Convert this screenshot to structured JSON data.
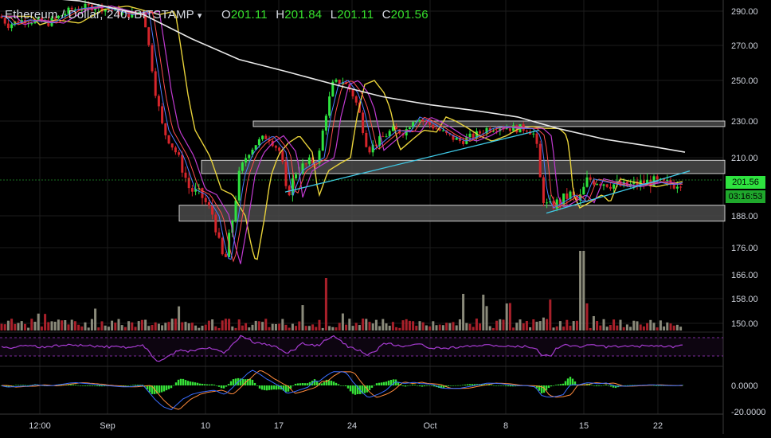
{
  "header": {
    "symbol": "Ethereum / Dollar, 240, BITSTAMP",
    "caret": "▾",
    "open_label": "O",
    "open": "201.11",
    "high_label": "H",
    "high": "201.84",
    "low_label": "L",
    "low": "201.11",
    "close_label": "C",
    "close": "201.56"
  },
  "price_badges": {
    "last": "201.56",
    "countdown": "03:16:53"
  },
  "colors": {
    "up": "#2ee33f",
    "down": "#d6252b",
    "sma_white": "#e8e8e8",
    "ema_yellow": "#e8d23a",
    "ema_purple": "#c03ad0",
    "ema_red": "#ff4d4d",
    "ema_blue": "#4d7cff",
    "trend": "#3fc9e6",
    "zone_fill": "#4a4a4a",
    "zone_edge": "#cfcfcf",
    "rsi": "#a63bd1",
    "macd": "#3a6dff",
    "signal": "#ff8a3c",
    "hist": "#36e038",
    "grid": "#1c1c1c"
  },
  "chart_data": {
    "type": "candlestick",
    "title": "Ethereum / Dollar, 240, BITSTAMP",
    "price_axis": {
      "min": 162,
      "max": 294,
      "ticks": [
        290,
        270,
        250,
        230,
        210,
        188,
        176,
        166,
        158,
        150
      ]
    },
    "x_axis_ticks": [
      "12:00",
      "Sep",
      "10",
      "17",
      "24",
      "Oct",
      "8",
      "15",
      "22"
    ],
    "path_anchors": [
      [
        0,
        287
      ],
      [
        10,
        282
      ],
      [
        30,
        285
      ],
      [
        60,
        283
      ],
      [
        90,
        291
      ],
      [
        120,
        293
      ],
      [
        160,
        288
      ],
      [
        180,
        290
      ],
      [
        195,
        245
      ],
      [
        205,
        225
      ],
      [
        222,
        212
      ],
      [
        238,
        198
      ],
      [
        252,
        196
      ],
      [
        268,
        188
      ],
      [
        276,
        176
      ],
      [
        282,
        170
      ],
      [
        292,
        187
      ],
      [
        300,
        203
      ],
      [
        312,
        213
      ],
      [
        322,
        218
      ],
      [
        336,
        222
      ],
      [
        352,
        213
      ],
      [
        360,
        195
      ],
      [
        372,
        205
      ],
      [
        388,
        208
      ],
      [
        400,
        210
      ],
      [
        408,
        232
      ],
      [
        418,
        248
      ],
      [
        430,
        250
      ],
      [
        442,
        244
      ],
      [
        450,
        236
      ],
      [
        462,
        214
      ],
      [
        478,
        220
      ],
      [
        492,
        225
      ],
      [
        508,
        224
      ],
      [
        520,
        232
      ],
      [
        532,
        230
      ],
      [
        548,
        226
      ],
      [
        562,
        222
      ],
      [
        578,
        219
      ],
      [
        596,
        222
      ],
      [
        612,
        226
      ],
      [
        628,
        227
      ],
      [
        644,
        226
      ],
      [
        662,
        226
      ],
      [
        672,
        222
      ],
      [
        680,
        196
      ],
      [
        688,
        191
      ],
      [
        700,
        193
      ],
      [
        716,
        196
      ],
      [
        726,
        193
      ],
      [
        738,
        202
      ],
      [
        752,
        201
      ],
      [
        768,
        200
      ],
      [
        784,
        199
      ],
      [
        800,
        200
      ],
      [
        818,
        201
      ],
      [
        832,
        200
      ],
      [
        845,
        200
      ],
      [
        858,
        201.56
      ]
    ],
    "moving_average_200": [
      [
        0,
        300
      ],
      [
        100,
        296
      ],
      [
        180,
        288
      ],
      [
        240,
        274
      ],
      [
        300,
        262
      ],
      [
        360,
        255
      ],
      [
        420,
        248
      ],
      [
        480,
        242
      ],
      [
        540,
        238
      ],
      [
        600,
        235
      ],
      [
        650,
        232
      ],
      [
        700,
        226
      ],
      [
        760,
        220
      ],
      [
        820,
        216
      ],
      [
        860,
        213
      ]
    ],
    "horizontal_zones": [
      {
        "from_x": 318,
        "to_x": 910,
        "low": 227,
        "high": 230
      },
      {
        "from_x": 253,
        "to_x": 910,
        "low": 204,
        "high": 209
      },
      {
        "from_x": 225,
        "to_x": 910,
        "low": 186,
        "high": 192
      }
    ],
    "trend_lines": [
      {
        "from": [
          358,
          197
        ],
        "to": [
          677,
          225
        ]
      },
      {
        "from": [
          686,
          189
        ],
        "to": [
          866,
          205
        ]
      }
    ],
    "rsi": {
      "range": [
        0,
        100
      ],
      "bands": [
        70,
        30
      ]
    },
    "macd": {
      "ticks": [
        0.0,
        -20.0
      ],
      "tick_labels": [
        "0.0000",
        "-20.0000"
      ]
    }
  }
}
